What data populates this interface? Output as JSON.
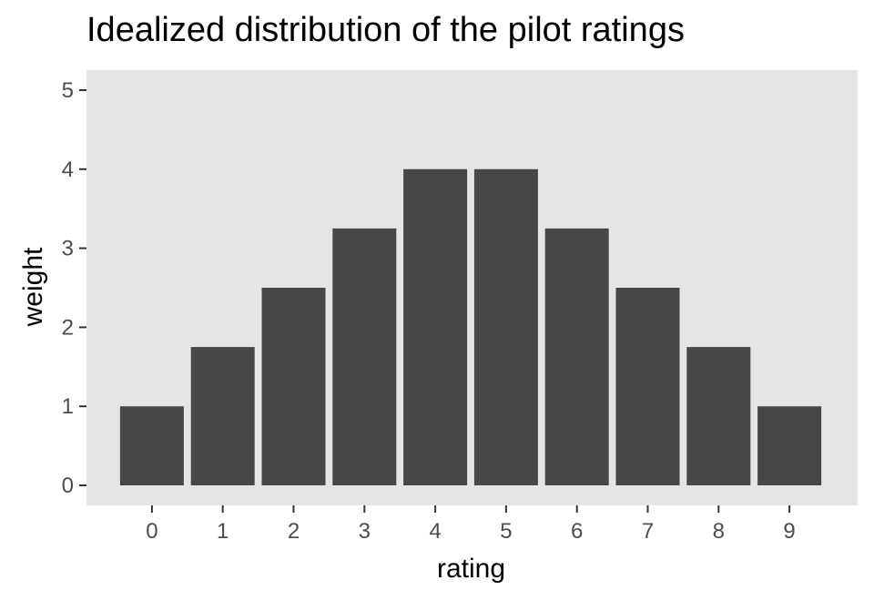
{
  "chart_data": {
    "type": "bar",
    "title": "Idealized distribution of the pilot ratings",
    "xlabel": "rating",
    "ylabel": "weight",
    "categories": [
      "0",
      "1",
      "2",
      "3",
      "4",
      "5",
      "6",
      "7",
      "8",
      "9"
    ],
    "values": [
      1,
      1.75,
      2.5,
      3.25,
      4,
      4,
      3.25,
      2.5,
      1.75,
      1
    ],
    "ylim": [
      0,
      5
    ],
    "yticks": [
      "0",
      "1",
      "2",
      "3",
      "4",
      "5"
    ],
    "grid": false,
    "legend": "none",
    "colors": {
      "bar": "#474747",
      "panel": "#e5e5e5",
      "tick_text": "#4d4d4d",
      "tick_mark": "#333333"
    }
  }
}
